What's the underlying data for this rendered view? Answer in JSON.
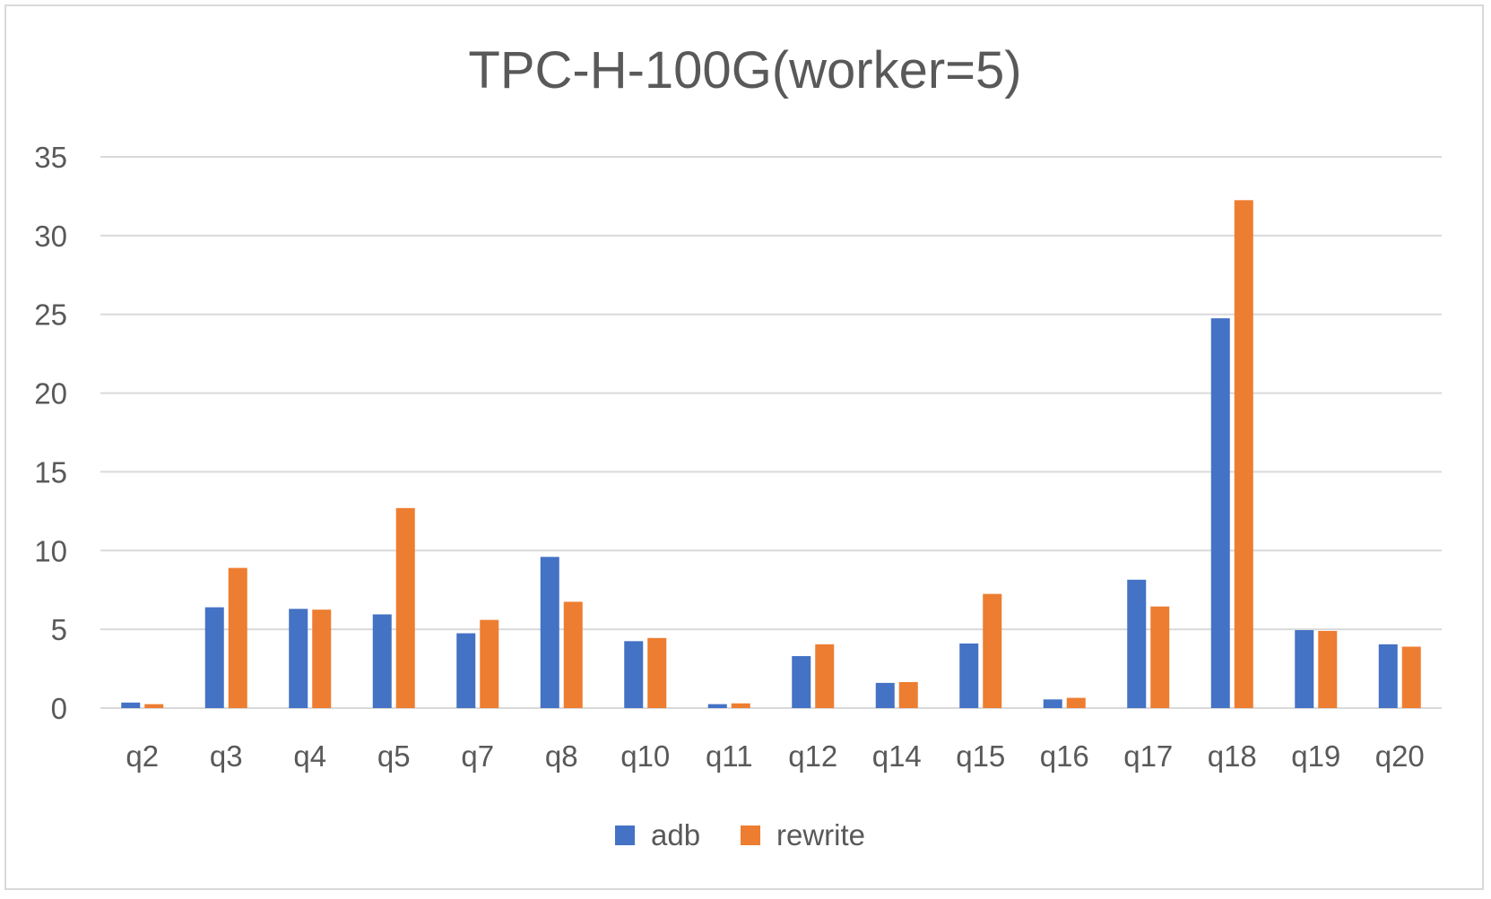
{
  "chart_data": {
    "type": "bar",
    "title": "TPC-H-100G(worker=5)",
    "xlabel": "",
    "ylabel": "",
    "categories": [
      "q2",
      "q3",
      "q4",
      "q5",
      "q7",
      "q8",
      "q10",
      "q11",
      "q12",
      "q14",
      "q15",
      "q16",
      "q17",
      "q18",
      "q19",
      "q20"
    ],
    "series": [
      {
        "name": "adb",
        "color": "#4472c4",
        "values": [
          0.35,
          6.4,
          6.3,
          5.95,
          4.75,
          9.6,
          4.25,
          0.25,
          3.3,
          1.6,
          4.1,
          0.55,
          8.15,
          24.75,
          4.95,
          4.05
        ]
      },
      {
        "name": "rewrite",
        "color": "#ed7d31",
        "values": [
          0.25,
          8.9,
          6.25,
          12.7,
          5.6,
          6.75,
          4.45,
          0.3,
          4.05,
          1.65,
          7.25,
          0.65,
          6.45,
          32.25,
          4.9,
          3.9
        ]
      }
    ],
    "ylim": [
      0,
      35
    ],
    "yticks": [
      0,
      5,
      10,
      15,
      20,
      25,
      30,
      35
    ],
    "grid": true,
    "gridColor": "#d9d9d9",
    "legend": "bottom"
  }
}
